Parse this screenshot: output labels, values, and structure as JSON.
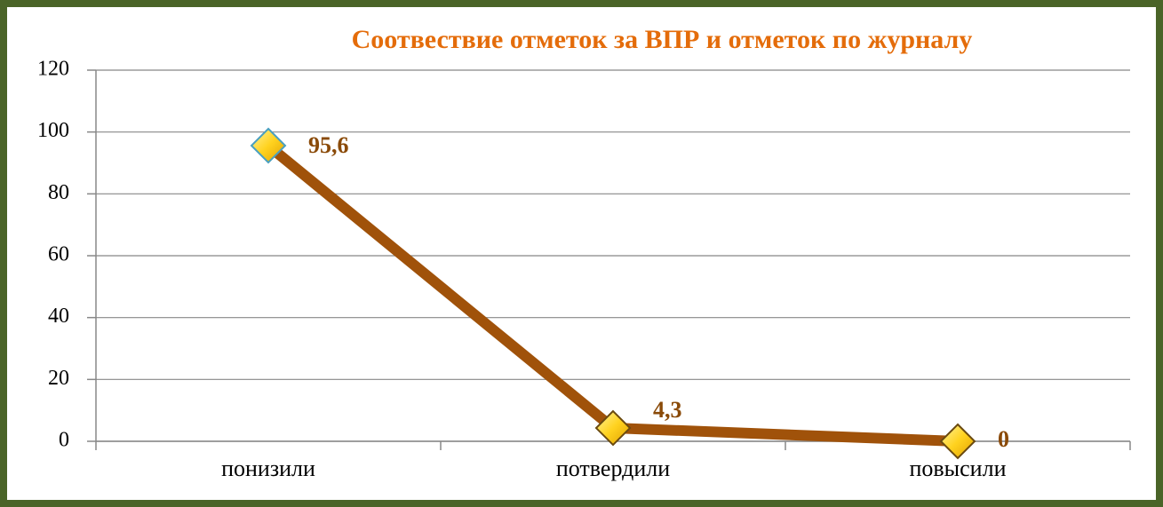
{
  "chart_data": {
    "type": "line",
    "title": "Соотвествие отметок за ВПР и отметок по журналу",
    "categories": [
      "понизили",
      "потвердили",
      "повысили"
    ],
    "values": [
      95.6,
      4.3,
      0
    ],
    "value_labels": [
      "95,6",
      "4,3",
      "0"
    ],
    "color": "#a0520a",
    "marker_color": "#ffd21f",
    "ylim": [
      0,
      120
    ],
    "yticks": [
      0,
      20,
      40,
      60,
      80,
      100,
      120
    ],
    "grid": true
  }
}
